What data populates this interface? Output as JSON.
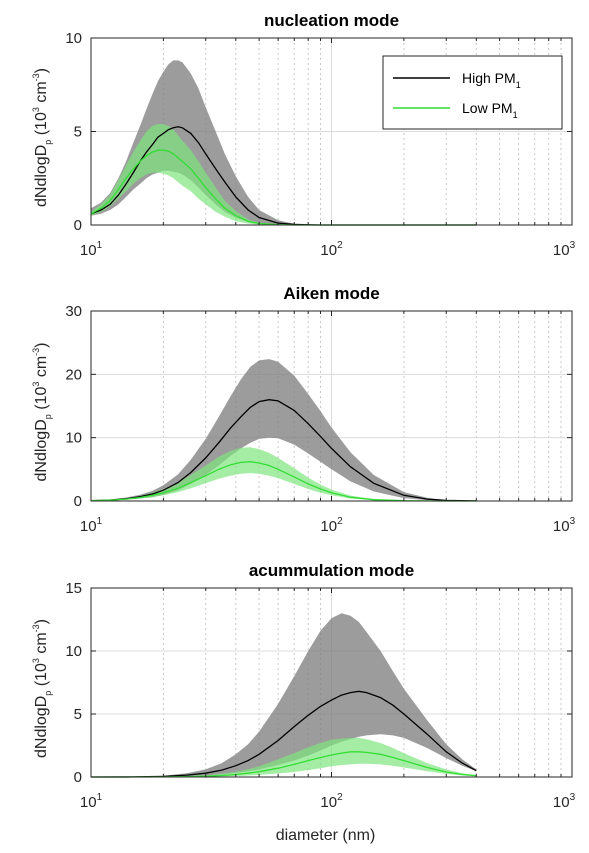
{
  "chart_data": [
    {
      "type": "line",
      "title": "nucleation mode",
      "xscale": "log",
      "xlim": [
        10,
        1000
      ],
      "ylim": [
        0,
        10
      ],
      "yticks": [
        0,
        5,
        10
      ],
      "xticks": [
        {
          "base": "10",
          "exp": "1"
        },
        {
          "base": "10",
          "exp": "2"
        },
        {
          "base": "10",
          "exp": "3"
        }
      ],
      "ylabel": {
        "main": "dNdlogD",
        "sub": "p",
        "unit_open": " (10",
        "unit_exp": "3",
        "unit_mid": " cm",
        "unit_exp2": "-3",
        "unit_close": ")"
      },
      "grid": true,
      "legend": {
        "placement": "top-right",
        "entries": [
          {
            "name": "High PM",
            "sub": "1"
          },
          {
            "name": "Low PM",
            "sub": "1"
          }
        ]
      },
      "x": [
        10,
        11,
        12,
        13,
        14,
        15,
        16,
        17,
        18,
        19,
        20,
        21,
        22,
        23,
        24,
        26,
        28,
        30,
        33,
        36,
        40,
        45,
        50,
        60,
        70,
        80,
        90,
        100,
        150,
        200,
        300,
        400
      ],
      "series": [
        {
          "name": "High PM1",
          "color": "#000000",
          "band_color": "#808080",
          "values": [
            0.6,
            0.8,
            1.1,
            1.6,
            2.2,
            2.8,
            3.4,
            3.9,
            4.3,
            4.7,
            4.9,
            5.1,
            5.2,
            5.25,
            5.2,
            4.9,
            4.4,
            3.8,
            3.0,
            2.3,
            1.5,
            0.8,
            0.4,
            0.1,
            0.03,
            0.01,
            0,
            0,
            0,
            0,
            0,
            0
          ],
          "lower": [
            0.5,
            0.6,
            0.8,
            1.1,
            1.5,
            1.9,
            2.2,
            2.5,
            2.7,
            2.8,
            2.9,
            2.9,
            2.85,
            2.8,
            2.7,
            2.4,
            2.0,
            1.6,
            1.1,
            0.7,
            0.4,
            0.15,
            0.05,
            0,
            0,
            0,
            0,
            0,
            0,
            0,
            0,
            0
          ],
          "upper": [
            0.9,
            1.2,
            1.7,
            2.5,
            3.4,
            4.4,
            5.3,
            6.2,
            7.0,
            7.7,
            8.2,
            8.6,
            8.8,
            8.8,
            8.7,
            8.1,
            7.3,
            6.3,
            5.0,
            3.8,
            2.6,
            1.5,
            0.8,
            0.25,
            0.07,
            0.02,
            0,
            0,
            0,
            0,
            0,
            0
          ]
        },
        {
          "name": "Low PM1",
          "color": "#33dd33",
          "band_color": "#7fe57f",
          "values": [
            0.6,
            0.9,
            1.3,
            1.9,
            2.5,
            3.0,
            3.4,
            3.7,
            3.9,
            4.0,
            4.0,
            3.95,
            3.8,
            3.6,
            3.4,
            3.0,
            2.5,
            2.0,
            1.4,
            0.9,
            0.5,
            0.2,
            0.08,
            0.02,
            0,
            0,
            0,
            0,
            0,
            0,
            0,
            0
          ],
          "lower": [
            0.5,
            0.7,
            1.0,
            1.4,
            1.8,
            2.2,
            2.5,
            2.7,
            2.8,
            2.8,
            2.75,
            2.65,
            2.5,
            2.3,
            2.1,
            1.8,
            1.4,
            1.1,
            0.7,
            0.45,
            0.2,
            0.08,
            0.02,
            0,
            0,
            0,
            0,
            0,
            0,
            0,
            0,
            0
          ],
          "upper": [
            0.7,
            1.1,
            1.6,
            2.4,
            3.2,
            3.9,
            4.5,
            5.0,
            5.3,
            5.4,
            5.4,
            5.3,
            5.1,
            4.8,
            4.5,
            4.0,
            3.4,
            2.8,
            2.0,
            1.3,
            0.75,
            0.3,
            0.12,
            0.03,
            0,
            0,
            0,
            0,
            0,
            0,
            0,
            0
          ]
        }
      ]
    },
    {
      "type": "line",
      "title": "Aiken mode",
      "xscale": "log",
      "xlim": [
        10,
        1000
      ],
      "ylim": [
        0,
        30
      ],
      "yticks": [
        0,
        10,
        20,
        30
      ],
      "xticks": [
        {
          "base": "10",
          "exp": "1"
        },
        {
          "base": "10",
          "exp": "2"
        },
        {
          "base": "10",
          "exp": "3"
        }
      ],
      "ylabel": {
        "main": "dNdlogD",
        "sub": "p",
        "unit_open": " (10",
        "unit_exp": "3",
        "unit_mid": " cm",
        "unit_exp2": "-3",
        "unit_close": ")"
      },
      "grid": true,
      "x": [
        10,
        12,
        14,
        16,
        18,
        20,
        23,
        26,
        30,
        34,
        38,
        42,
        46,
        50,
        55,
        60,
        70,
        80,
        90,
        100,
        120,
        150,
        200,
        250,
        300,
        400
      ],
      "series": [
        {
          "name": "High PM1",
          "color": "#000000",
          "band_color": "#808080",
          "values": [
            0.05,
            0.15,
            0.35,
            0.7,
            1.1,
            1.7,
            2.9,
            4.5,
            6.8,
            9.2,
            11.5,
            13.3,
            14.8,
            15.7,
            16.0,
            15.8,
            14.3,
            12.2,
            10.2,
            8.3,
            5.4,
            2.8,
            0.9,
            0.3,
            0.1,
            0.02
          ],
          "lower": [
            0.03,
            0.1,
            0.2,
            0.4,
            0.6,
            1.0,
            1.7,
            2.7,
            4.1,
            5.6,
            7.1,
            8.3,
            9.2,
            9.8,
            10.0,
            9.9,
            8.9,
            7.5,
            6.2,
            5.0,
            3.1,
            1.5,
            0.45,
            0.15,
            0.05,
            0.01
          ],
          "upper": [
            0.08,
            0.25,
            0.55,
            1.0,
            1.6,
            2.5,
            4.2,
            6.5,
            9.8,
            13.3,
            16.5,
            19.2,
            21.2,
            22.2,
            22.4,
            22.0,
            19.8,
            16.9,
            14.2,
            11.6,
            7.7,
            4.1,
            1.4,
            0.5,
            0.15,
            0.03
          ]
        },
        {
          "name": "Low PM1",
          "color": "#33dd33",
          "band_color": "#7fe57f",
          "values": [
            0.05,
            0.15,
            0.3,
            0.55,
            0.9,
            1.3,
            2.0,
            2.9,
            4.0,
            5.0,
            5.7,
            6.1,
            6.2,
            6.0,
            5.6,
            5.0,
            3.8,
            2.7,
            1.9,
            1.3,
            0.6,
            0.2,
            0.04,
            0.01,
            0,
            0
          ],
          "lower": [
            0.03,
            0.1,
            0.2,
            0.4,
            0.6,
            0.9,
            1.4,
            2.0,
            2.8,
            3.5,
            4.0,
            4.3,
            4.4,
            4.3,
            4.0,
            3.6,
            2.7,
            1.9,
            1.3,
            0.9,
            0.4,
            0.12,
            0.02,
            0,
            0,
            0
          ],
          "upper": [
            0.07,
            0.2,
            0.45,
            0.8,
            1.3,
            1.9,
            2.9,
            4.1,
            5.6,
            7.0,
            7.9,
            8.4,
            8.5,
            8.2,
            7.6,
            6.8,
            5.2,
            3.7,
            2.6,
            1.8,
            0.85,
            0.3,
            0.06,
            0.01,
            0,
            0
          ]
        }
      ]
    },
    {
      "type": "line",
      "title": "acummulation mode",
      "xscale": "log",
      "xlim": [
        10,
        1000
      ],
      "ylim": [
        0,
        15
      ],
      "yticks": [
        0,
        5,
        10,
        15
      ],
      "xticks": [
        {
          "base": "10",
          "exp": "1"
        },
        {
          "base": "10",
          "exp": "2"
        },
        {
          "base": "10",
          "exp": "3"
        }
      ],
      "ylabel": {
        "main": "dNdlogD",
        "sub": "p",
        "unit_open": " (10",
        "unit_exp": "3",
        "unit_mid": " cm",
        "unit_exp2": "-3",
        "unit_close": ")"
      },
      "xlabel": "diameter (nm)",
      "grid": true,
      "x": [
        10,
        15,
        20,
        25,
        30,
        35,
        40,
        45,
        50,
        60,
        70,
        80,
        90,
        100,
        110,
        120,
        130,
        140,
        160,
        180,
        200,
        250,
        300,
        350,
        400
      ],
      "series": [
        {
          "name": "High PM1",
          "color": "#000000",
          "band_color": "#808080",
          "values": [
            0,
            0.01,
            0.05,
            0.15,
            0.3,
            0.55,
            0.9,
            1.3,
            1.8,
            2.9,
            4.0,
            4.9,
            5.6,
            6.1,
            6.5,
            6.7,
            6.8,
            6.7,
            6.3,
            5.7,
            5.0,
            3.4,
            2.0,
            1.1,
            0.5
          ],
          "lower": [
            0,
            0.005,
            0.02,
            0.06,
            0.12,
            0.2,
            0.32,
            0.45,
            0.6,
            0.95,
            1.3,
            1.7,
            2.1,
            2.5,
            2.8,
            3.0,
            3.2,
            3.3,
            3.4,
            3.3,
            3.1,
            2.3,
            1.5,
            0.9,
            0.45
          ],
          "upper": [
            0,
            0.02,
            0.1,
            0.3,
            0.6,
            1.1,
            1.8,
            2.6,
            3.6,
            5.8,
            8.0,
            10.0,
            11.6,
            12.6,
            13.0,
            12.8,
            12.3,
            11.5,
            10.0,
            8.4,
            7.0,
            4.5,
            2.6,
            1.4,
            0.6
          ]
        },
        {
          "name": "Low PM1",
          "color": "#33dd33",
          "band_color": "#7fe57f",
          "values": [
            0,
            0,
            0.01,
            0.03,
            0.06,
            0.12,
            0.2,
            0.3,
            0.42,
            0.7,
            1.0,
            1.3,
            1.55,
            1.75,
            1.9,
            2.0,
            2.0,
            1.95,
            1.8,
            1.55,
            1.3,
            0.75,
            0.4,
            0.2,
            0.1
          ],
          "lower": [
            0,
            0,
            0.005,
            0.01,
            0.03,
            0.05,
            0.08,
            0.12,
            0.17,
            0.28,
            0.4,
            0.55,
            0.7,
            0.85,
            0.95,
            1.0,
            1.05,
            1.05,
            1.0,
            0.9,
            0.75,
            0.45,
            0.25,
            0.12,
            0.06
          ],
          "upper": [
            0,
            0,
            0.02,
            0.06,
            0.12,
            0.25,
            0.42,
            0.62,
            0.85,
            1.4,
            1.9,
            2.35,
            2.7,
            2.95,
            3.05,
            3.1,
            3.1,
            3.0,
            2.7,
            2.3,
            1.9,
            1.1,
            0.6,
            0.3,
            0.15
          ]
        }
      ]
    }
  ]
}
